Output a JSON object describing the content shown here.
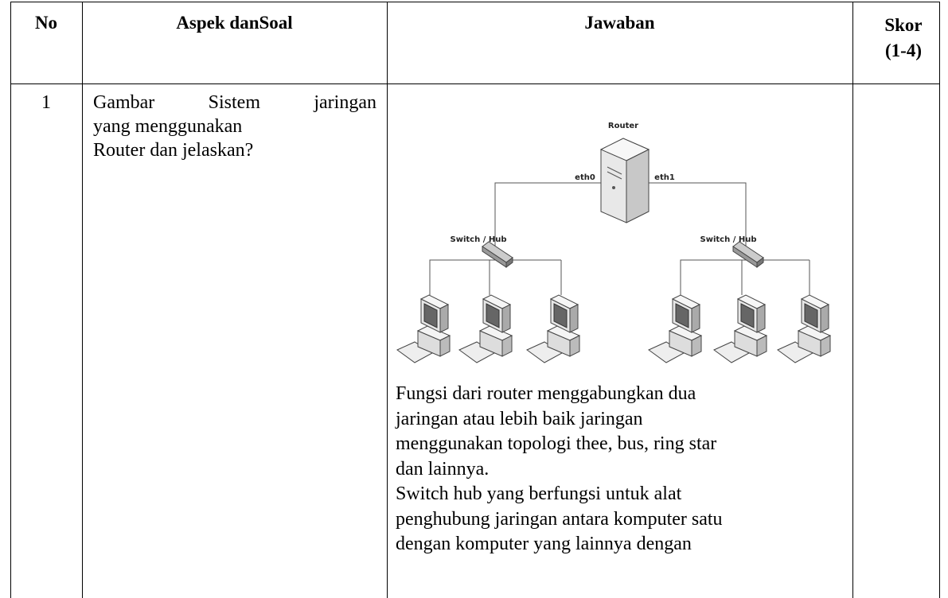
{
  "table": {
    "headers": [
      "No",
      "Aspek danSoal",
      "Jawaban",
      "Skor (1-4)"
    ],
    "rows": [
      {
        "no": "1",
        "question": [
          "Gambar Sistem jaringan",
          "yang menggunakan",
          "Router dan jelaskan?"
        ],
        "answer": {
          "diagram": {
            "router": "Router",
            "eth0": "eth0",
            "eth1": "eth1",
            "switch_left": "Switch / Hub",
            "switch_right": "Switch / Hub"
          },
          "paragraphs": [
            [
              "Fungsi dari router menggabungkan dua",
              "jaringan atau lebih baik jaringan",
              "menggunakan topologi thee, bus, ring star",
              "dan lainnya."
            ],
            [
              "Switch hub yang berfungsi untuk alat",
              "penghubung jaringan antara komputer satu",
              "dengan komputer yang lainnya dengan"
            ]
          ]
        }
      }
    ]
  }
}
